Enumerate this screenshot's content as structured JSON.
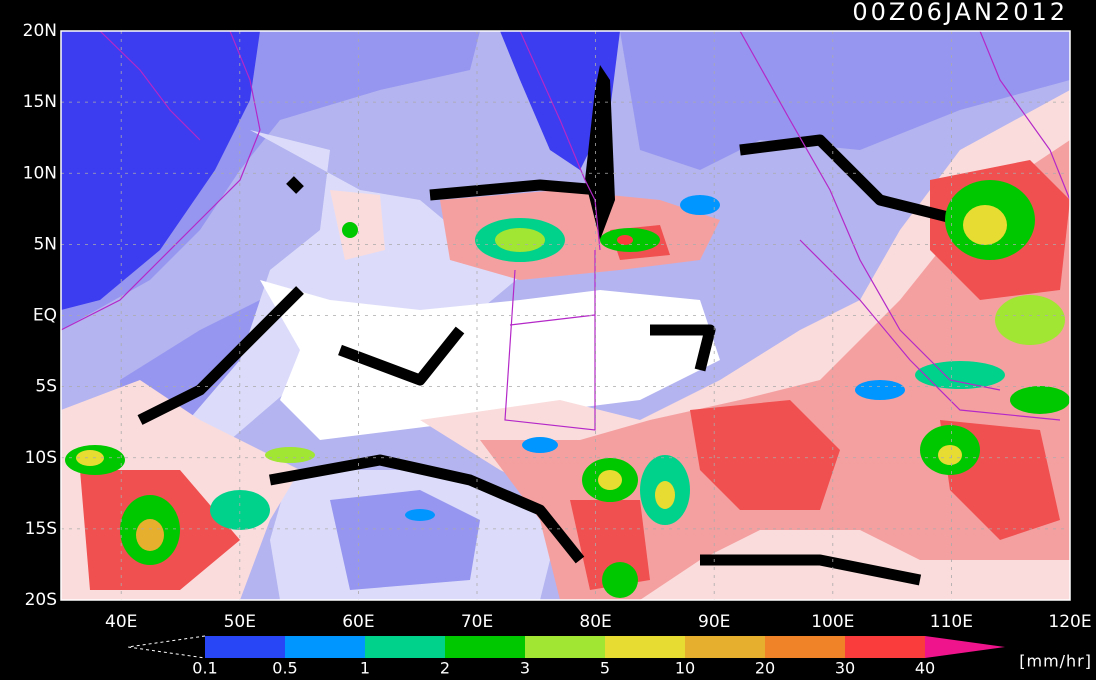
{
  "header": {
    "title": "00Z06JAN2012"
  },
  "map": {
    "lat_labels": [
      "20N",
      "15N",
      "10N",
      "5N",
      "EQ",
      "5S",
      "10S",
      "15S",
      "20S"
    ],
    "lon_labels": [
      "40E",
      "50E",
      "60E",
      "70E",
      "80E",
      "90E",
      "100E",
      "110E",
      "120E"
    ]
  },
  "colorbar": {
    "levels": [
      0.1,
      0.5,
      1,
      2,
      3,
      5,
      10,
      20,
      30,
      40
    ],
    "colors": [
      "#2846f5",
      "#0096ff",
      "#00d28c",
      "#00c800",
      "#a0e632",
      "#e6dc32",
      "#e6af2d",
      "#f08228",
      "#fa3c3c",
      "#f0148c"
    ],
    "unit": "[mm/hr]"
  }
}
